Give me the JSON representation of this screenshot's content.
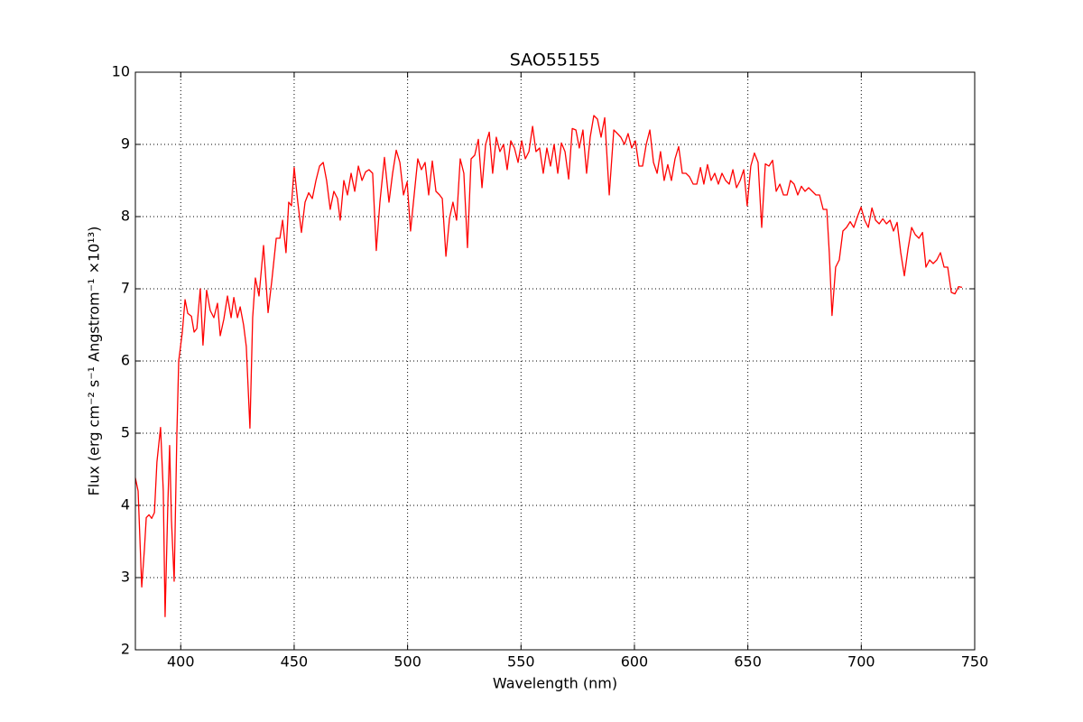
{
  "chart_data": {
    "type": "line",
    "title": "SAO55155",
    "x_label": "Wavelength (nm)",
    "y_label": "Flux  (erg cm⁻²  s⁻¹  Angstrom⁻¹  ×10¹³)",
    "xlim": [
      380,
      750
    ],
    "ylim": [
      2,
      10
    ],
    "xticks": [
      400,
      450,
      500,
      550,
      600,
      650,
      700,
      750
    ],
    "yticks": [
      2,
      3,
      4,
      5,
      6,
      7,
      8,
      9,
      10
    ],
    "grid": true,
    "x": [
      380,
      381.2,
      382.8,
      384,
      384.8,
      386,
      387.2,
      388.4,
      389.5,
      391.1,
      392.3,
      393.1,
      394.3,
      395.1,
      395.9,
      397.1,
      398.3,
      399.1,
      400.7,
      401.9,
      403.1,
      404.7,
      405.9,
      407.1,
      408.6,
      409.8,
      411.4,
      413,
      414.6,
      416.2,
      417.4,
      419,
      420.6,
      422.2,
      423.4,
      425,
      426.2,
      427.7,
      428.9,
      430.5,
      431.7,
      432.9,
      434.5,
      436.5,
      438.5,
      440.1,
      442.1,
      443.7,
      444.9,
      446.4,
      447.6,
      448.8,
      450,
      451.6,
      453.2,
      454.8,
      456.4,
      458,
      459.6,
      461.2,
      462.8,
      464.3,
      465.9,
      467.5,
      469.1,
      470.3,
      471.9,
      473.5,
      475.1,
      476.7,
      478.3,
      479.9,
      481.5,
      483,
      484.6,
      486.2,
      487.8,
      489.8,
      491.8,
      493.4,
      495,
      496.6,
      498.2,
      499.8,
      501.3,
      502.9,
      504.5,
      506.1,
      507.7,
      509.3,
      510.9,
      512.5,
      514.1,
      515.3,
      516.9,
      518.5,
      520,
      521.6,
      523.2,
      524.8,
      526.4,
      528,
      529.6,
      531.2,
      532.8,
      534.4,
      536,
      537.5,
      539.1,
      540.7,
      542.3,
      543.9,
      545.5,
      547.1,
      548.7,
      550.3,
      551.9,
      553.5,
      555.1,
      556.6,
      558.2,
      559.8,
      561.4,
      563,
      564.6,
      566.2,
      567.8,
      569.4,
      571,
      572.6,
      574.2,
      575.7,
      577.3,
      578.9,
      580.5,
      582.1,
      583.7,
      585.3,
      586.9,
      588.9,
      590.9,
      592.5,
      594,
      595.6,
      597.2,
      598.8,
      600.4,
      602,
      603.6,
      605.2,
      606.8,
      608.4,
      610,
      611.5,
      613.1,
      614.7,
      616.3,
      617.9,
      619.5,
      621.1,
      622.7,
      624.3,
      625.9,
      627.5,
      629.1,
      630.6,
      632.2,
      633.8,
      635.4,
      637,
      638.6,
      640.2,
      641.8,
      643.4,
      645,
      646.6,
      648.2,
      649.7,
      651.3,
      652.9,
      654.5,
      656.1,
      657.7,
      659.3,
      660.9,
      662.5,
      664.1,
      665.7,
      667.3,
      668.8,
      670.4,
      672,
      673.6,
      675.2,
      676.8,
      678.4,
      680,
      681.6,
      683.2,
      684.8,
      685.9,
      687.1,
      688.7,
      690.3,
      691.9,
      693.5,
      695.1,
      696.7,
      698.3,
      699.9,
      701.5,
      703.1,
      704.7,
      706.3,
      707.9,
      709.5,
      711.1,
      712.7,
      714.2,
      715.8,
      717.4,
      719,
      720.6,
      722.2,
      723.8,
      725.4,
      727,
      728.5,
      730.1,
      731.7,
      733.3,
      734.9,
      736.5,
      738.1,
      739.7,
      741.3,
      742.9,
      744.4
    ],
    "series": [
      {
        "name": "SAO55155",
        "color": "#ff0000",
        "values": [
          4.38,
          4.2,
          2.87,
          3.4,
          3.83,
          3.87,
          3.82,
          3.9,
          4.6,
          5.08,
          4.2,
          2.46,
          4.0,
          4.83,
          3.8,
          2.95,
          5.0,
          6.0,
          6.4,
          6.85,
          6.66,
          6.62,
          6.4,
          6.45,
          7.0,
          6.22,
          6.98,
          6.7,
          6.6,
          6.8,
          6.35,
          6.58,
          6.9,
          6.6,
          6.88,
          6.6,
          6.75,
          6.5,
          6.2,
          5.07,
          6.6,
          7.15,
          6.9,
          7.6,
          6.67,
          7.1,
          7.7,
          7.7,
          7.95,
          7.5,
          8.2,
          8.15,
          8.68,
          8.2,
          7.78,
          8.2,
          8.33,
          8.25,
          8.5,
          8.7,
          8.75,
          8.5,
          8.1,
          8.35,
          8.25,
          7.95,
          8.5,
          8.3,
          8.6,
          8.35,
          8.7,
          8.5,
          8.62,
          8.65,
          8.6,
          7.53,
          8.2,
          8.82,
          8.2,
          8.6,
          8.92,
          8.75,
          8.3,
          8.48,
          7.8,
          8.3,
          8.8,
          8.65,
          8.75,
          8.3,
          8.77,
          8.35,
          8.3,
          8.25,
          7.45,
          7.98,
          8.2,
          7.95,
          8.8,
          8.6,
          7.57,
          8.8,
          8.85,
          9.07,
          8.4,
          9.0,
          9.17,
          8.6,
          9.1,
          8.9,
          9.0,
          8.65,
          9.05,
          8.95,
          8.75,
          9.05,
          8.8,
          8.9,
          9.25,
          8.9,
          8.95,
          8.6,
          8.95,
          8.7,
          9.0,
          8.6,
          9.02,
          8.9,
          8.52,
          9.22,
          9.2,
          8.95,
          9.2,
          8.6,
          9.1,
          9.4,
          9.35,
          9.1,
          9.37,
          8.3,
          9.2,
          9.15,
          9.1,
          9.0,
          9.15,
          8.95,
          9.05,
          8.7,
          8.7,
          9.0,
          9.2,
          8.75,
          8.6,
          8.9,
          8.5,
          8.72,
          8.5,
          8.8,
          8.97,
          8.6,
          8.6,
          8.55,
          8.45,
          8.45,
          8.68,
          8.45,
          8.72,
          8.5,
          8.6,
          8.45,
          8.6,
          8.5,
          8.45,
          8.65,
          8.4,
          8.5,
          8.65,
          8.15,
          8.7,
          8.88,
          8.75,
          7.85,
          8.73,
          8.7,
          8.78,
          8.35,
          8.45,
          8.3,
          8.3,
          8.5,
          8.45,
          8.3,
          8.42,
          8.35,
          8.4,
          8.35,
          8.3,
          8.3,
          8.1,
          8.1,
          7.5,
          6.63,
          7.3,
          7.4,
          7.8,
          7.85,
          7.93,
          7.85,
          8.0,
          8.13,
          7.95,
          7.85,
          8.12,
          7.95,
          7.9,
          7.97,
          7.9,
          7.95,
          7.8,
          7.92,
          7.5,
          7.18,
          7.55,
          7.85,
          7.75,
          7.7,
          7.78,
          7.3,
          7.4,
          7.35,
          7.4,
          7.5,
          7.3,
          7.3,
          6.95,
          6.93,
          7.03,
          7.02
        ]
      }
    ]
  }
}
